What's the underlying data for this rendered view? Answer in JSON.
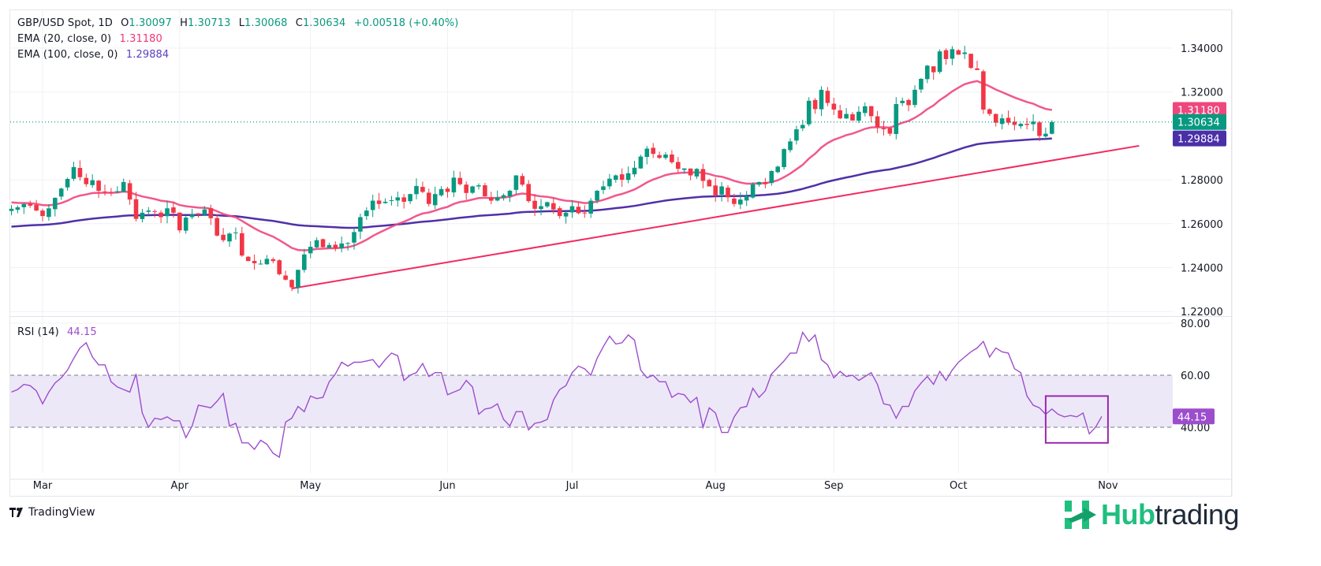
{
  "header": {
    "symbol": "GBP/USD Spot, 1D",
    "ohlc": {
      "open_label": "O",
      "open": "1.30097",
      "high_label": "H",
      "high": "1.30713",
      "low_label": "L",
      "low": "1.30068",
      "close_label": "C",
      "close": "1.30634",
      "change": "+0.00518 (+0.40%)"
    },
    "ema20_label": "EMA (20, close, 0)",
    "ema20_value": "1.31180",
    "ema100_label": "EMA (100, close, 0)",
    "ema100_value": "1.29884",
    "rsi_label": "RSI (14)",
    "rsi_value": "44.15"
  },
  "colors": {
    "up": "#089981",
    "down": "#f23645",
    "ema20": "#f0467e",
    "ema100": "#5030a8",
    "trendline": "#f2295f",
    "rsi": "#9c4dcc",
    "rsi_band": "#ede8f8",
    "highlight_box": "#9c27b0",
    "last_price_tag": "#089981",
    "ema20_tag": "#f0467e",
    "ema100_tag": "#4a2fa8",
    "rsi_tag": "#9c4dcc"
  },
  "branding": {
    "tradingview": "TradingView",
    "watermark_hub": "Hub",
    "watermark_trading": "trading"
  },
  "chart_data": [
    {
      "type": "candlestick",
      "title": "GBP/USD Spot, 1D",
      "ylim": [
        1.215,
        1.352
      ],
      "price_ticks": [
        "1.34000",
        "1.32000",
        "1.28000",
        "1.26000",
        "1.24000",
        "1.22000"
      ],
      "price_tick_values": [
        1.34,
        1.32,
        1.28,
        1.26,
        1.24,
        1.22
      ],
      "time_ticks": [
        "Mar",
        "Apr",
        "May",
        "Jun",
        "Jul",
        "Aug",
        "Sep",
        "Oct",
        "Nov"
      ],
      "time_tick_bar_index": [
        5,
        27,
        48,
        70,
        90,
        113,
        132,
        152,
        176
      ],
      "last_price": 1.30634,
      "ema20_last": 1.3118,
      "ema100_last": 1.29884,
      "closes": [
        1.2668,
        1.2675,
        1.269,
        1.2682,
        1.266,
        1.2635,
        1.267,
        1.2718,
        1.276,
        1.2804,
        1.2858,
        1.2812,
        1.278,
        1.2798,
        1.275,
        1.2745,
        1.274,
        1.2748,
        1.279,
        1.271,
        1.2622,
        1.265,
        1.266,
        1.2655,
        1.263,
        1.267,
        1.265,
        1.257,
        1.2628,
        1.2642,
        1.264,
        1.2665,
        1.2625,
        1.2546,
        1.2525,
        1.2555,
        1.256,
        1.2455,
        1.243,
        1.242,
        1.2418,
        1.244,
        1.243,
        1.237,
        1.2345,
        1.231,
        1.239,
        1.246,
        1.2495,
        1.2525,
        1.2493,
        1.2503,
        1.2488,
        1.251,
        1.2512,
        1.2562,
        1.263,
        1.266,
        1.2705,
        1.269,
        1.27,
        1.2707,
        1.272,
        1.27,
        1.2735,
        1.2772,
        1.2745,
        1.269,
        1.2735,
        1.2758,
        1.2745,
        1.281,
        1.278,
        1.274,
        1.277,
        1.2775,
        1.2725,
        1.2705,
        1.272,
        1.273,
        1.275,
        1.282,
        1.2778,
        1.2703,
        1.2668,
        1.268,
        1.2698,
        1.2665,
        1.2635,
        1.265,
        1.268,
        1.2648,
        1.2648,
        1.2705,
        1.275,
        1.277,
        1.2805,
        1.282,
        1.28,
        1.283,
        1.2855,
        1.2906,
        1.2942,
        1.2918,
        1.29,
        1.2915,
        1.288,
        1.285,
        1.2852,
        1.282,
        1.285,
        1.2795,
        1.277,
        1.273,
        1.277,
        1.272,
        1.269,
        1.271,
        1.2725,
        1.278,
        1.279,
        1.278,
        1.284,
        1.286,
        1.294,
        1.2975,
        1.303,
        1.305,
        1.316,
        1.3122,
        1.321,
        1.315,
        1.312,
        1.308,
        1.31,
        1.307,
        1.311,
        1.3135,
        1.309,
        1.304,
        1.303,
        1.301,
        1.3145,
        1.316,
        1.314,
        1.321,
        1.326,
        1.332,
        1.329,
        1.3385,
        1.335,
        1.3395,
        1.337,
        1.338,
        1.331,
        1.33,
        1.312,
        1.31,
        1.306,
        1.308,
        1.306,
        1.305,
        1.3055,
        1.305,
        1.3065,
        1.3,
        1.301,
        1.3063
      ],
      "rsi": {
        "title": "RSI (14)",
        "ylim": [
          22,
          80
        ],
        "ticks": [
          "80.00",
          "60.00",
          "40.00"
        ],
        "tick_values": [
          80,
          60,
          40
        ],
        "upper_band": 60,
        "lower_band": 40,
        "last": 44.15,
        "values": [
          53.5,
          54.5,
          56.5,
          56,
          54,
          49,
          53.5,
          57,
          59,
          62,
          66.5,
          70.5,
          72.5,
          67,
          64,
          64,
          57.5,
          55.5,
          54.5,
          53.5,
          60.5,
          45.5,
          40,
          43.5,
          43,
          44,
          42.5,
          42.5,
          36,
          40.5,
          48.5,
          48,
          47.5,
          50,
          53,
          40.5,
          41.5,
          34,
          34,
          31.5,
          35,
          33.5,
          30,
          28.5,
          42,
          43.5,
          48,
          46,
          52,
          51,
          51.5,
          57.5,
          60.5,
          65,
          63.5,
          65,
          65,
          65.5,
          66,
          63,
          66,
          68.5,
          67.5,
          58,
          60,
          61,
          64.5,
          59.5,
          61,
          61,
          52.5,
          53.5,
          54.5,
          58,
          55.5,
          45,
          47,
          47.5,
          49,
          43,
          40.5,
          46,
          46,
          39,
          41.5,
          42,
          43,
          50.5,
          54.5,
          56,
          61,
          63.5,
          62.5,
          60,
          66.5,
          71,
          75,
          72,
          72.5,
          75.5,
          73.5,
          62,
          59,
          60,
          57.5,
          57.5,
          51.5,
          53,
          52.5,
          49.5,
          51.5,
          40,
          47.5,
          45.5,
          38,
          38,
          44,
          47.5,
          48,
          55,
          51.5,
          54,
          60.5,
          63,
          65.5,
          68.5,
          68.5,
          76.5,
          73,
          75.5,
          66,
          64,
          59,
          61.5,
          59.5,
          60,
          58,
          59.5,
          61,
          56.5,
          49,
          48.5,
          43.5,
          48,
          48,
          54,
          57,
          59.5,
          56.5,
          61.5,
          58,
          62,
          65,
          67,
          69,
          70.5,
          73,
          67,
          70.5,
          69,
          68.5,
          62.5,
          61,
          52,
          48.5,
          47.5,
          45,
          47,
          45,
          44,
          44.5,
          44,
          45.5,
          37.5,
          40,
          44.15
        ]
      },
      "trendline": {
        "from_bar": 45,
        "from_price": 1.2305,
        "to_bar": 181,
        "to_price": 1.2955
      },
      "highlight_box": {
        "from_bar": 166,
        "to_bar": 176,
        "rsi_top": 52,
        "rsi_bottom": 34
      }
    }
  ]
}
